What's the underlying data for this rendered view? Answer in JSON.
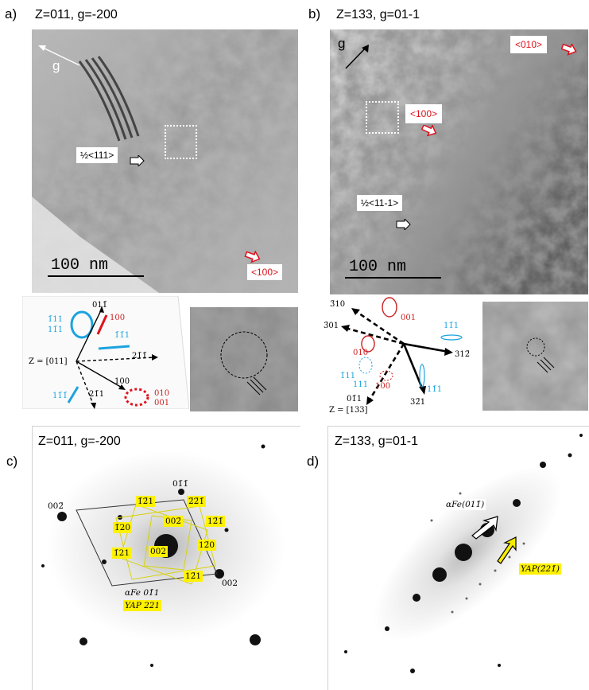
{
  "figure": {
    "a": {
      "letter": "a)",
      "title": "Z=011, g=-200",
      "g_label": "g",
      "dislocation_label": "½<111>",
      "loop_label": "<100>",
      "scalebar": "100 nm",
      "diagram": {
        "zone": "Z = [011]",
        "v_top": "011̄",
        "v_right": "21̄1̄",
        "v_100": "100",
        "v_bottom": "21̄1",
        "red_100": "100",
        "red_010": "010",
        "red_001": "001",
        "blue_111a": "1̄11",
        "blue_111b": "11̄1",
        "blue_1m11": "1̄1̄1",
        "blue_11m1": "11̄1̄"
      }
    },
    "b": {
      "letter": "b)",
      "title": "Z=133, g=01-1",
      "g_label": "g",
      "loop_010": "<010>",
      "loop_100": "<100>",
      "dislocation_label": "½<11-1>",
      "scalebar": "100 nm",
      "diagram": {
        "zone": "Z = [133]",
        "v_310": "3̄10",
        "v_301": "3̄01",
        "v_312": "312̄",
        "v_321": "32̄1",
        "v_011": "01̄1",
        "red_001": "001",
        "red_010": "010",
        "red_100": "100",
        "blue_1m11": "11̄1",
        "blue_m111": "1̄11",
        "blue_111": "111",
        "blue_11m1": "11̄1"
      }
    },
    "c": {
      "letter": "c)",
      "title": "Z=011, g=-200",
      "spots": {
        "s01m1": "01̄1̄",
        "s002bar": "002̄",
        "s002": "002",
        "alpha_fe": "αFe 01̄1",
        "yap": "YAP 221"
      },
      "yellow": [
        "1̄2̄1",
        "2̄2̄1̄",
        "12̄1̄",
        "1̄20",
        "002̄",
        "002",
        "12̄0",
        "1̄21",
        "12̄1"
      ]
    },
    "d": {
      "letter": "d)",
      "title": "Z=133, g=01-1",
      "alpha_fe": "αFe(011̄)",
      "yap": "YAP(2̄21̄)"
    }
  },
  "colors": {
    "red": "#e0101b",
    "blue": "#1ba3e0",
    "yellow": "#fff200"
  }
}
